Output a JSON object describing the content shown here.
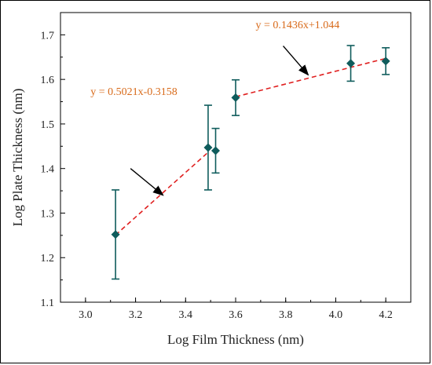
{
  "chart_data": {
    "type": "scatter",
    "xlabel": "Log Film Thickness (nm)",
    "ylabel": "Log Plate Thickness (nm)",
    "xlim": [
      2.9,
      4.3
    ],
    "ylim": [
      1.1,
      1.75
    ],
    "x_ticks": [
      "3.0",
      "3.2",
      "3.4",
      "3.6",
      "3.8",
      "4.0",
      "4.2"
    ],
    "y_ticks": [
      "1.1",
      "1.2",
      "1.3",
      "1.4",
      "1.5",
      "1.6",
      "1.7"
    ],
    "x_tick_values": [
      3.0,
      3.2,
      3.4,
      3.6,
      3.8,
      4.0,
      4.2
    ],
    "y_tick_values": [
      1.1,
      1.2,
      1.3,
      1.4,
      1.5,
      1.6,
      1.7
    ],
    "series": [
      {
        "marker": "diamond",
        "color": "#0f5c5c",
        "points": [
          {
            "x": 3.12,
            "y": 1.252,
            "err": 0.1
          },
          {
            "x": 3.49,
            "y": 1.447,
            "err": 0.095
          },
          {
            "x": 3.52,
            "y": 1.44,
            "err": 0.05
          },
          {
            "x": 3.6,
            "y": 1.559,
            "err": 0.04
          },
          {
            "x": 4.06,
            "y": 1.636,
            "err": 0.04
          },
          {
            "x": 4.2,
            "y": 1.641,
            "err": 0.03
          }
        ]
      }
    ],
    "fit_lines": [
      {
        "x": [
          3.12,
          3.49
        ],
        "y": [
          1.2507,
          1.4364
        ],
        "color": "#e02020",
        "dash": true
      },
      {
        "x": [
          3.6,
          4.2
        ],
        "y": [
          1.561,
          1.6471
        ],
        "color": "#e02020",
        "dash": true
      }
    ],
    "annotations": [
      {
        "text": "y = 0.5021x-0.3158",
        "x": 3.02,
        "y": 1.565,
        "arrow_from": [
          3.18,
          1.4
        ],
        "arrow_to": [
          3.31,
          1.34
        ]
      },
      {
        "text": "y = 0.1436x+1.044",
        "x": 3.68,
        "y": 1.715,
        "arrow_from": [
          3.79,
          1.675
        ],
        "arrow_to": [
          3.89,
          1.61
        ]
      }
    ],
    "annotation_color": "#d86a1a",
    "grid": false
  }
}
